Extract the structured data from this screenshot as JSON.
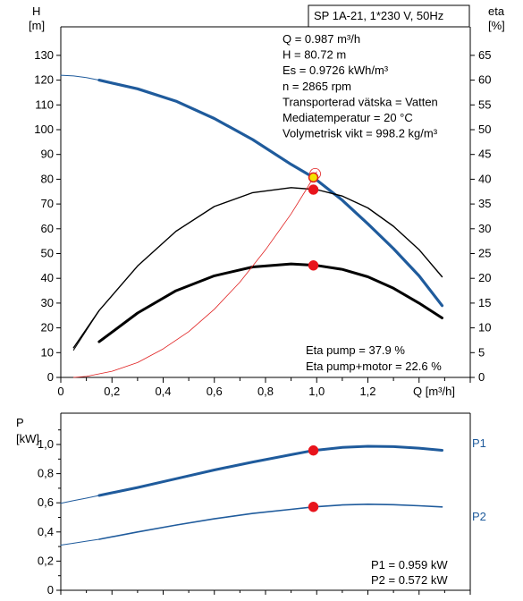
{
  "chart_data": [
    {
      "type": "line",
      "title": "SP 1A-21, 1*230 V, 50Hz",
      "xlabel": "Q [m³/h]",
      "ylabel_left": [
        "H",
        "[m]"
      ],
      "ylabel_right": [
        "eta",
        "[%]"
      ],
      "xlim": [
        0,
        1.6
      ],
      "ylim_left": [
        0,
        140
      ],
      "ylim_right": [
        0,
        70
      ],
      "x_ticks": [
        "0",
        "0,2",
        "0,4",
        "0,6",
        "0,8",
        "1,0",
        "1,2"
      ],
      "y_ticks_left": [
        "0",
        "10",
        "20",
        "30",
        "40",
        "50",
        "60",
        "70",
        "80",
        "90",
        "100",
        "110",
        "120",
        "130"
      ],
      "y_ticks_right": [
        "0",
        "5",
        "10",
        "15",
        "20",
        "25",
        "30",
        "35",
        "40",
        "45",
        "50",
        "55",
        "60",
        "65"
      ],
      "grid": false,
      "info_lines": [
        "Q = 0.987 m³/h",
        "H = 80.72 m",
        "Es = 0.9726 kWh/m³",
        "n = 2865 rpm",
        "Transporterad vätska = Vatten",
        "Mediatemperatur = 20 °C",
        "Volymetrisk vikt = 998.2 kg/m³"
      ],
      "eta_lines": [
        "Eta pump = 37.9 %",
        "Eta pump+motor = 22.6 %"
      ],
      "series": [
        {
          "axis": "left",
          "color": "#1f5b9c",
          "width": 3.2,
          "x": [
            0.15,
            0.3,
            0.45,
            0.6,
            0.75,
            0.9,
            0.987,
            1.1,
            1.2,
            1.3,
            1.4,
            1.49
          ],
          "y": [
            120,
            116.5,
            111.5,
            104.5,
            96,
            86,
            80.72,
            71.5,
            62,
            52,
            41,
            29
          ]
        },
        {
          "axis": "left",
          "color": "#1f5b9c",
          "width": 1,
          "x": [
            0,
            0.05,
            0.1,
            0.15
          ],
          "y": [
            122,
            121.7,
            121,
            120
          ]
        },
        {
          "axis": "right",
          "color": "#000000",
          "width": 1.4,
          "x": [
            0.05,
            0.15,
            0.3,
            0.45,
            0.6,
            0.75,
            0.9,
            1.0,
            1.1,
            1.2,
            1.3,
            1.4,
            1.49
          ],
          "y": [
            6,
            13.5,
            22.5,
            29.5,
            34.5,
            37.3,
            38.3,
            37.9,
            36.6,
            34.2,
            30.5,
            25.8,
            20.3
          ]
        },
        {
          "axis": "right",
          "color": "#000000",
          "width": 3,
          "x": [
            0.15,
            0.3,
            0.45,
            0.6,
            0.75,
            0.9,
            1.0,
            1.1,
            1.2,
            1.3,
            1.4,
            1.49
          ],
          "y": [
            7.2,
            13,
            17.5,
            20.5,
            22.3,
            22.9,
            22.6,
            21.8,
            20.3,
            18,
            15,
            12
          ]
        },
        {
          "axis": "right",
          "color": "#000000",
          "width": 1,
          "x": [
            0.05,
            0.1,
            0.15
          ],
          "y": [
            5.5,
            9.5,
            13.5
          ]
        },
        {
          "axis": "left",
          "color": "#e02020",
          "width": 0.8,
          "x": [
            0.05,
            0.1,
            0.2,
            0.3,
            0.4,
            0.5,
            0.6,
            0.7,
            0.8,
            0.9,
            0.96,
            1.0
          ],
          "y": [
            0,
            0.4,
            2.5,
            6,
            11.5,
            18.5,
            27.5,
            38.5,
            51.5,
            66,
            76,
            83
          ]
        }
      ],
      "operating_points": [
        {
          "x": 0.987,
          "y": 80.72,
          "axis": "left",
          "style": "yellow"
        },
        {
          "x": 0.987,
          "y": 37.9,
          "axis": "right",
          "style": "red"
        },
        {
          "x": 0.987,
          "y": 22.6,
          "axis": "right",
          "style": "red"
        }
      ]
    },
    {
      "type": "line",
      "ylabel": [
        "P",
        "[kW]"
      ],
      "xlim": [
        0,
        1.6
      ],
      "ylim": [
        0,
        1.2
      ],
      "y_ticks": [
        "0",
        "0,2",
        "0,4",
        "0,6",
        "0,8",
        "1,0"
      ],
      "grid": false,
      "series": [
        {
          "name": "P1",
          "color": "#1f5b9c",
          "width": 3,
          "x": [
            0.15,
            0.3,
            0.45,
            0.6,
            0.75,
            0.9,
            0.987,
            1.1,
            1.2,
            1.3,
            1.4,
            1.49
          ],
          "y": [
            0.65,
            0.705,
            0.765,
            0.825,
            0.88,
            0.93,
            0.959,
            0.98,
            0.988,
            0.985,
            0.975,
            0.96
          ]
        },
        {
          "name": "P1-ext",
          "color": "#1f5b9c",
          "width": 1,
          "x": [
            0,
            0.05,
            0.1,
            0.15
          ],
          "y": [
            0.597,
            0.615,
            0.632,
            0.65
          ]
        },
        {
          "name": "P2",
          "color": "#1f5b9c",
          "width": 1.6,
          "x": [
            0.15,
            0.3,
            0.45,
            0.6,
            0.75,
            0.9,
            0.987,
            1.1,
            1.2,
            1.3,
            1.4,
            1.49
          ],
          "y": [
            0.35,
            0.4,
            0.447,
            0.49,
            0.527,
            0.555,
            0.572,
            0.585,
            0.59,
            0.587,
            0.58,
            0.572
          ]
        },
        {
          "name": "P2-ext",
          "color": "#1f5b9c",
          "width": 1,
          "x": [
            0,
            0.05,
            0.1,
            0.15
          ],
          "y": [
            0.31,
            0.323,
            0.337,
            0.35
          ]
        }
      ],
      "series_labels": [
        "P1",
        "P2"
      ],
      "readouts": [
        "P1 = 0.959 kW",
        "P2 = 0.572 kW"
      ],
      "operating_points": [
        {
          "x": 0.987,
          "y": 0.959
        },
        {
          "x": 0.987,
          "y": 0.572
        }
      ]
    }
  ]
}
